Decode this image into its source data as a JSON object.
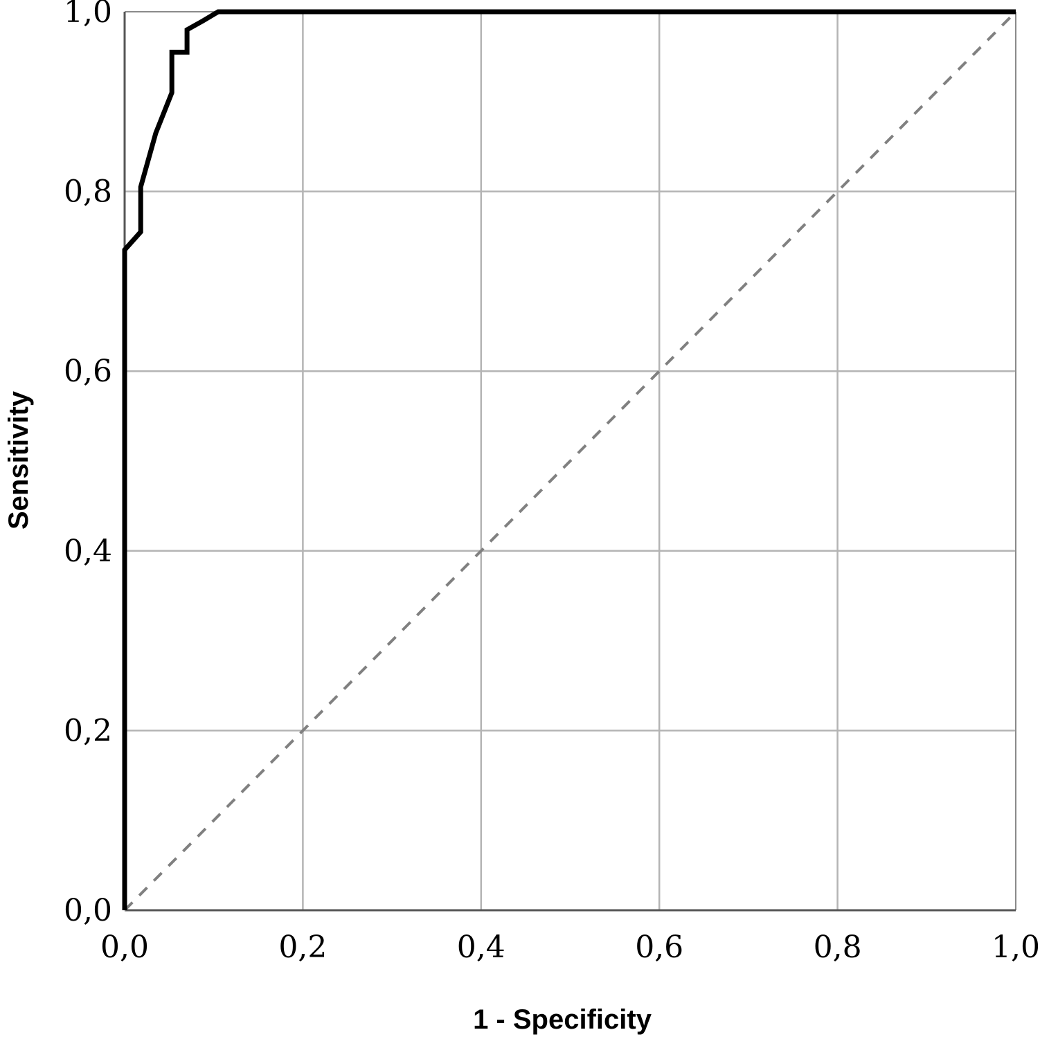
{
  "chart_data": {
    "type": "line",
    "xlabel": "1 - Specificity",
    "ylabel": "Sensitivity",
    "xlim": [
      0,
      1
    ],
    "ylim": [
      0,
      1
    ],
    "grid": true,
    "x_ticks": [
      {
        "value": 0.0,
        "label": "0,0"
      },
      {
        "value": 0.2,
        "label": "0,2"
      },
      {
        "value": 0.4,
        "label": "0,4"
      },
      {
        "value": 0.6,
        "label": "0,6"
      },
      {
        "value": 0.8,
        "label": "0,8"
      },
      {
        "value": 1.0,
        "label": "1,0"
      }
    ],
    "y_ticks": [
      {
        "value": 0.0,
        "label": "0,0"
      },
      {
        "value": 0.2,
        "label": "0,2"
      },
      {
        "value": 0.4,
        "label": "0,4"
      },
      {
        "value": 0.6,
        "label": "0,6"
      },
      {
        "value": 0.8,
        "label": "0,8"
      },
      {
        "value": 1.0,
        "label": "1,0"
      }
    ],
    "series": [
      {
        "style": "solid",
        "color": "#000000",
        "points": [
          [
            0.0,
            0.0
          ],
          [
            0.0,
            0.735
          ],
          [
            0.018,
            0.755
          ],
          [
            0.018,
            0.805
          ],
          [
            0.035,
            0.865
          ],
          [
            0.053,
            0.91
          ],
          [
            0.053,
            0.955
          ],
          [
            0.07,
            0.955
          ],
          [
            0.07,
            0.98
          ],
          [
            0.088,
            0.99
          ],
          [
            0.105,
            1.0
          ],
          [
            1.0,
            1.0
          ]
        ]
      },
      {
        "style": "dashed",
        "color": "#808080",
        "points": [
          [
            0.0,
            0.0
          ],
          [
            1.0,
            1.0
          ]
        ]
      }
    ]
  }
}
